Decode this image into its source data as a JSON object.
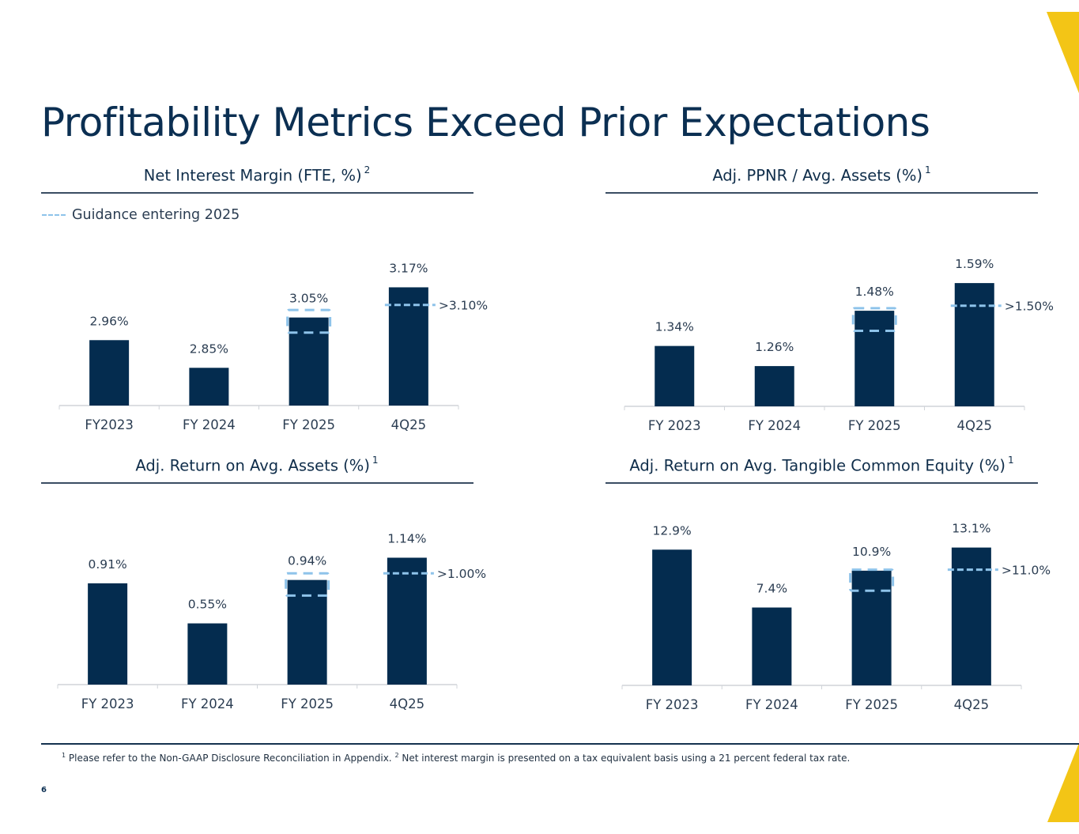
{
  "page": {
    "title": "Profitability Metrics Exceed Prior Expectations",
    "page_number": "6",
    "legend_label": "Guidance entering 2025",
    "footnote_1_marker": "1",
    "footnote_1_text": "Please refer to the Non-GAAP Disclosure Reconciliation in Appendix.",
    "footnote_2_marker": "2",
    "footnote_2_text": "Net interest margin is presented on a tax equivalent basis using a 21 percent federal tax rate.",
    "colors": {
      "bar": "#042c4f",
      "guidance": "#8ec3ea",
      "accent": "#f3c516",
      "title": "#0b2f52"
    }
  },
  "chart_data": [
    {
      "id": "nim",
      "type": "bar",
      "title": "Net Interest Margin (FTE, %)",
      "title_sup": "2",
      "categories": [
        "FY2023",
        "FY 2024",
        "FY 2025",
        "4Q25"
      ],
      "values": [
        2.96,
        2.85,
        3.05,
        3.17
      ],
      "value_labels": [
        "2.96%",
        "2.85%",
        "3.05%",
        "3.17%"
      ],
      "ylim": [
        2.7,
        3.25
      ],
      "guidance_range": {
        "category": "FY 2025",
        "low": 2.99,
        "high": 3.08
      },
      "guidance_line": {
        "category": "4Q25",
        "value": 3.1,
        "label": ">3.10%"
      },
      "xlabel": "",
      "ylabel": "",
      "grid": false
    },
    {
      "id": "ppnr",
      "type": "bar",
      "title": "Adj. PPNR / Avg. Assets (%)",
      "title_sup": "1",
      "categories": [
        "FY 2023",
        "FY 2024",
        "FY 2025",
        "4Q25"
      ],
      "values": [
        1.34,
        1.26,
        1.48,
        1.59
      ],
      "value_labels": [
        "1.34%",
        "1.26%",
        "1.48%",
        "1.59%"
      ],
      "ylim": [
        1.1,
        1.65
      ],
      "guidance_range": {
        "category": "FY 2025",
        "low": 1.4,
        "high": 1.49
      },
      "guidance_line": {
        "category": "4Q25",
        "value": 1.5,
        "label": ">1.50%"
      },
      "xlabel": "",
      "ylabel": "",
      "grid": false
    },
    {
      "id": "roa",
      "type": "bar",
      "title": "Adj. Return on Avg. Assets (%)",
      "title_sup": "1",
      "categories": [
        "FY 2023",
        "FY 2024",
        "FY 2025",
        "4Q25"
      ],
      "values": [
        0.91,
        0.55,
        0.94,
        1.14
      ],
      "value_labels": [
        "0.91%",
        "0.55%",
        "0.94%",
        "1.14%"
      ],
      "ylim": [
        0.0,
        1.25
      ],
      "guidance_range": {
        "category": "FY 2025",
        "low": 0.8,
        "high": 1.0
      },
      "guidance_line": {
        "category": "4Q25",
        "value": 1.0,
        "label": ">1.00%"
      },
      "xlabel": "",
      "ylabel": "",
      "grid": false
    },
    {
      "id": "rotce",
      "type": "bar",
      "title": "Adj. Return on Avg. Tangible Common Equity (%)",
      "title_sup": "1",
      "categories": [
        "FY 2023",
        "FY 2024",
        "FY 2025",
        "4Q25"
      ],
      "values": [
        12.9,
        7.4,
        10.9,
        13.1
      ],
      "value_labels": [
        "12.9%",
        "7.4%",
        "10.9%",
        "13.1%"
      ],
      "ylim": [
        0.0,
        14.5
      ],
      "guidance_range": {
        "category": "FY 2025",
        "low": 9.0,
        "high": 11.0
      },
      "guidance_line": {
        "category": "4Q25",
        "value": 11.0,
        "label": ">11.0%"
      },
      "xlabel": "",
      "ylabel": "",
      "grid": false
    }
  ]
}
